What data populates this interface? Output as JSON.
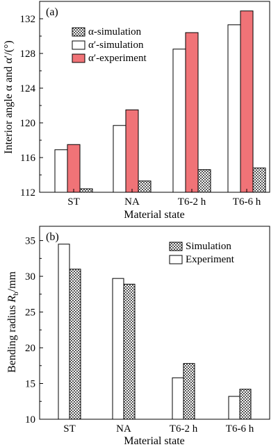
{
  "chart_data": [
    {
      "panel": "(a)",
      "type": "bar",
      "categories": [
        "ST",
        "NA",
        "T6-2 h",
        "T6-6 h"
      ],
      "series": [
        {
          "name": "α-simulation",
          "values": [
            112.4,
            113.3,
            114.6,
            114.8
          ],
          "pattern": "hatch"
        },
        {
          "name": "α′-simulation",
          "values": [
            116.9,
            119.7,
            128.5,
            131.3
          ],
          "color": "#ffffff"
        },
        {
          "name": "α′-experiment",
          "values": [
            117.5,
            121.5,
            130.4,
            132.9
          ],
          "color": "#f07377"
        }
      ],
      "bar_order": [
        "α′-simulation",
        "α′-experiment",
        "α-simulation"
      ],
      "xlabel": "Material state",
      "ylabel": "Interior angle α and α′/(°)",
      "ylim": [
        112,
        134
      ],
      "yticks": [
        112,
        116,
        120,
        124,
        128,
        132
      ],
      "legend": "top-left",
      "grid": false
    },
    {
      "panel": "(b)",
      "type": "bar",
      "categories": [
        "ST",
        "NA",
        "T6-2 h",
        "T6-6 h"
      ],
      "series": [
        {
          "name": "Simulation",
          "values": [
            31.0,
            28.9,
            17.8,
            14.2
          ],
          "pattern": "hatch"
        },
        {
          "name": "Experiment",
          "values": [
            34.5,
            29.7,
            15.8,
            13.2
          ],
          "color": "#ffffff"
        }
      ],
      "bar_order": [
        "Experiment",
        "Simulation"
      ],
      "xlabel": "Material state",
      "ylabel": "Bending radius R_b/mm",
      "ylim": [
        10,
        37
      ],
      "yticks": [
        10,
        15,
        20,
        25,
        30,
        35
      ],
      "legend": "top-right",
      "grid": false
    }
  ]
}
